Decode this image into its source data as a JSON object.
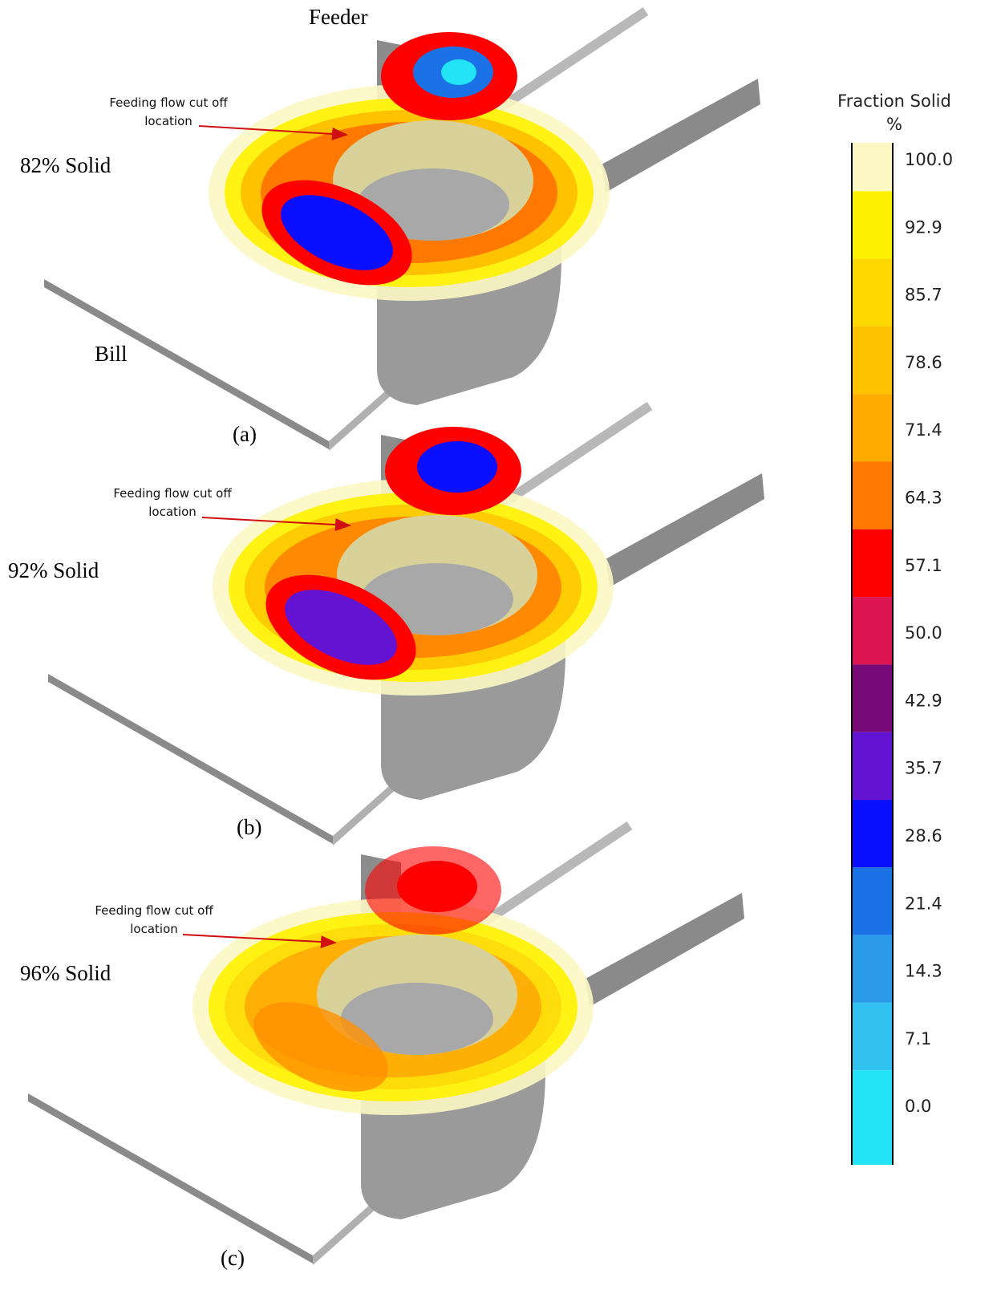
{
  "panels": [
    {
      "label": "(a)",
      "state": "82% Solid",
      "note": [
        "Feeding flow cut off",
        "location"
      ],
      "feeder": "Feeder",
      "bill": "Bill"
    },
    {
      "label": "(b)",
      "state": "92% Solid",
      "note": [
        "Feeding flow cut off",
        "location"
      ]
    },
    {
      "label": "(c)",
      "state": "96% Solid",
      "note": [
        "Feeding flow cut off",
        "location"
      ]
    }
  ],
  "colorbar": {
    "title": "Fraction Solid",
    "unit": "%",
    "ticks": [
      "100.0",
      "92.9",
      "85.7",
      "78.6",
      "71.4",
      "64.3",
      "57.1",
      "50.0",
      "42.9",
      "35.7",
      "28.6",
      "21.4",
      "14.3",
      "7.1",
      "0.0"
    ],
    "colors": [
      "#fdf7c4",
      "#fff200",
      "#ffd800",
      "#ffc200",
      "#ffaa00",
      "#ff7800",
      "#ff0000",
      "#dc1450",
      "#780a78",
      "#6214d2",
      "#0a10ff",
      "#1a72e6",
      "#2a9ae8",
      "#32c2f2",
      "#22e4f6"
    ]
  }
}
